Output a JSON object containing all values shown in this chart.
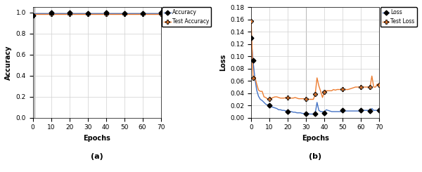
{
  "acc_epochs": [
    0,
    1,
    2,
    3,
    4,
    5,
    6,
    7,
    8,
    9,
    10,
    11,
    12,
    13,
    14,
    15,
    16,
    17,
    18,
    19,
    20,
    21,
    22,
    23,
    24,
    25,
    26,
    27,
    28,
    29,
    30,
    31,
    32,
    33,
    34,
    35,
    36,
    37,
    38,
    39,
    40,
    41,
    42,
    43,
    44,
    45,
    46,
    47,
    48,
    49,
    50,
    51,
    52,
    53,
    54,
    55,
    56,
    57,
    58,
    59,
    60,
    61,
    62,
    63,
    64,
    65,
    66,
    67,
    68,
    69,
    70
  ],
  "acc_train": [
    0.97,
    0.99,
    0.99,
    0.99,
    0.99,
    0.99,
    0.99,
    0.99,
    0.99,
    0.99,
    1.0,
    0.99,
    0.99,
    0.99,
    0.99,
    0.99,
    0.99,
    0.99,
    0.99,
    0.99,
    1.0,
    0.99,
    0.99,
    0.99,
    0.99,
    0.99,
    0.99,
    0.99,
    0.99,
    0.99,
    0.99,
    0.99,
    0.99,
    0.99,
    0.99,
    0.99,
    0.99,
    0.99,
    0.99,
    0.99,
    1.0,
    0.99,
    0.99,
    0.99,
    0.99,
    0.99,
    0.99,
    0.99,
    0.99,
    0.99,
    0.99,
    0.99,
    0.99,
    0.99,
    0.99,
    0.99,
    0.99,
    0.99,
    0.99,
    0.99,
    0.99,
    0.99,
    0.99,
    0.99,
    0.99,
    0.99,
    0.99,
    0.99,
    0.99,
    0.99,
    1.0
  ],
  "acc_test": [
    0.975,
    0.983,
    0.983,
    0.983,
    0.983,
    0.983,
    0.983,
    0.983,
    0.983,
    0.983,
    0.983,
    0.983,
    0.983,
    0.983,
    0.983,
    0.983,
    0.983,
    0.983,
    0.983,
    0.983,
    0.983,
    0.983,
    0.983,
    0.983,
    0.983,
    0.983,
    0.983,
    0.983,
    0.983,
    0.983,
    0.983,
    0.983,
    0.983,
    0.983,
    0.983,
    0.983,
    0.983,
    0.983,
    0.983,
    0.983,
    0.983,
    0.983,
    0.983,
    0.983,
    0.983,
    0.983,
    0.983,
    0.983,
    0.983,
    0.983,
    0.983,
    0.983,
    0.983,
    0.983,
    0.983,
    0.983,
    0.983,
    0.983,
    0.983,
    0.983,
    0.983,
    0.983,
    0.983,
    0.983,
    0.983,
    0.983,
    0.983,
    0.983,
    0.983,
    0.983,
    0.983
  ],
  "loss_epochs": [
    0,
    1,
    2,
    3,
    4,
    5,
    6,
    7,
    8,
    9,
    10,
    11,
    12,
    13,
    14,
    15,
    16,
    17,
    18,
    19,
    20,
    21,
    22,
    23,
    24,
    25,
    26,
    27,
    28,
    29,
    30,
    31,
    32,
    33,
    34,
    35,
    36,
    37,
    38,
    39,
    40,
    41,
    42,
    43,
    44,
    45,
    46,
    47,
    48,
    49,
    50,
    51,
    52,
    53,
    54,
    55,
    56,
    57,
    58,
    59,
    60,
    61,
    62,
    63,
    64,
    65,
    66,
    67,
    68,
    69,
    70
  ],
  "loss_train": [
    0.13,
    0.093,
    0.065,
    0.045,
    0.035,
    0.03,
    0.028,
    0.025,
    0.022,
    0.021,
    0.02,
    0.018,
    0.017,
    0.016,
    0.015,
    0.013,
    0.013,
    0.012,
    0.012,
    0.011,
    0.01,
    0.01,
    0.01,
    0.009,
    0.009,
    0.008,
    0.008,
    0.008,
    0.007,
    0.007,
    0.007,
    0.007,
    0.006,
    0.006,
    0.006,
    0.007,
    0.025,
    0.012,
    0.01,
    0.01,
    0.008,
    0.013,
    0.012,
    0.011,
    0.01,
    0.01,
    0.01,
    0.01,
    0.01,
    0.01,
    0.012,
    0.011,
    0.011,
    0.011,
    0.011,
    0.011,
    0.011,
    0.011,
    0.011,
    0.011,
    0.012,
    0.012,
    0.012,
    0.012,
    0.012,
    0.011,
    0.015,
    0.012,
    0.012,
    0.012,
    0.012
  ],
  "loss_test": [
    0.158,
    0.065,
    0.067,
    0.055,
    0.045,
    0.043,
    0.043,
    0.034,
    0.033,
    0.03,
    0.03,
    0.032,
    0.033,
    0.034,
    0.034,
    0.033,
    0.032,
    0.032,
    0.032,
    0.033,
    0.033,
    0.032,
    0.032,
    0.032,
    0.033,
    0.032,
    0.031,
    0.031,
    0.031,
    0.031,
    0.03,
    0.03,
    0.03,
    0.03,
    0.03,
    0.038,
    0.065,
    0.052,
    0.043,
    0.033,
    0.042,
    0.044,
    0.044,
    0.044,
    0.044,
    0.046,
    0.045,
    0.046,
    0.046,
    0.046,
    0.047,
    0.046,
    0.046,
    0.046,
    0.047,
    0.048,
    0.049,
    0.05,
    0.05,
    0.05,
    0.05,
    0.05,
    0.05,
    0.05,
    0.05,
    0.05,
    0.068,
    0.05,
    0.05,
    0.055,
    0.053
  ],
  "acc_marker_epochs": [
    0,
    10,
    20,
    30,
    40,
    50,
    60,
    70
  ],
  "loss_marker_epochs": [
    0,
    1,
    10,
    20,
    30,
    35,
    40,
    50,
    60,
    65,
    70
  ],
  "train_color": "#4472c4",
  "test_color": "#ed7d31",
  "marker_color": "black",
  "vline_x_acc": 1,
  "vline_x_loss": 30,
  "ylabel_acc": "Accuracy",
  "ylabel_loss": "Loss",
  "xlabel": "Epochs",
  "label_a": "(a)",
  "label_b": "(b)",
  "legend_train_acc": "Accuracy",
  "legend_test_acc": "Test Accuracy",
  "legend_train_loss": "Loss",
  "legend_test_loss": "Test Loss",
  "acc_ylim": [
    0.0,
    1.05
  ],
  "acc_yticks": [
    0.0,
    0.2,
    0.4,
    0.6,
    0.8,
    1.0
  ],
  "loss_ylim": [
    0.0,
    0.18
  ],
  "loss_yticks": [
    0.0,
    0.02,
    0.04,
    0.06,
    0.08,
    0.1,
    0.12,
    0.14,
    0.16,
    0.18
  ],
  "xlim": [
    0,
    70
  ],
  "xticks": [
    0,
    10,
    20,
    30,
    40,
    50,
    60,
    70
  ],
  "background_color": "#ffffff",
  "grid_color": "#d0d0d0"
}
